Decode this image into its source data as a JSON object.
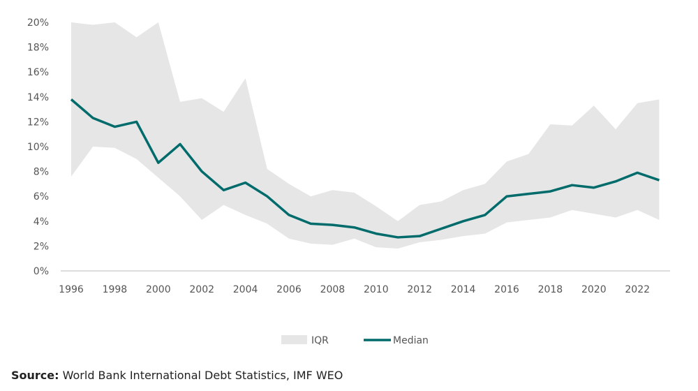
{
  "chart_data": {
    "type": "area",
    "title": "",
    "xlabel": "",
    "ylabel": "",
    "ylim": [
      0,
      20
    ],
    "y_ticks": [
      "0%",
      "2%",
      "4%",
      "6%",
      "8%",
      "10%",
      "12%",
      "14%",
      "16%",
      "18%",
      "20%"
    ],
    "x_ticks": [
      "1996",
      "1998",
      "2000",
      "2002",
      "2004",
      "2006",
      "2008",
      "2010",
      "2012",
      "2014",
      "2016",
      "2018",
      "2020",
      "2022"
    ],
    "grid": false,
    "legend_position": "bottom",
    "x": [
      1996,
      1997,
      1998,
      1999,
      2000,
      2001,
      2002,
      2003,
      2004,
      2005,
      2006,
      2007,
      2008,
      2009,
      2010,
      2011,
      2012,
      2013,
      2014,
      2015,
      2016,
      2017,
      2018,
      2019,
      2020,
      2021,
      2022,
      2023
    ],
    "series": [
      {
        "name": "IQR",
        "type": "band",
        "color": "#e6e6e6",
        "upper": [
          20,
          19.8,
          20,
          18.8,
          20,
          13.6,
          13.9,
          12.8,
          15.5,
          8.2,
          7.0,
          6.0,
          6.5,
          6.3,
          5.2,
          4.0,
          5.3,
          5.6,
          6.5,
          7.0,
          8.8,
          9.4,
          11.8,
          11.7,
          13.3,
          11.4,
          13.5,
          13.8
        ],
        "lower": [
          7.6,
          10.0,
          9.9,
          9.0,
          7.5,
          6.0,
          4.1,
          5.3,
          4.5,
          3.8,
          2.6,
          2.2,
          2.1,
          2.6,
          1.9,
          1.8,
          2.3,
          2.5,
          2.8,
          3.0,
          3.9,
          4.1,
          4.3,
          4.9,
          4.6,
          4.3,
          4.9,
          4.1
        ]
      },
      {
        "name": "Median",
        "type": "line",
        "color": "#006b6b",
        "values": [
          13.8,
          12.3,
          11.6,
          12.0,
          8.7,
          10.2,
          8.0,
          6.5,
          7.1,
          6.0,
          4.5,
          3.8,
          3.7,
          3.5,
          3.0,
          2.7,
          2.8,
          3.4,
          4.0,
          4.5,
          6.0,
          6.2,
          6.4,
          6.9,
          6.7,
          7.2,
          7.9,
          7.3
        ]
      }
    ]
  },
  "source": {
    "label": "Source:",
    "text": " World Bank International Debt Statistics, IMF WEO"
  }
}
